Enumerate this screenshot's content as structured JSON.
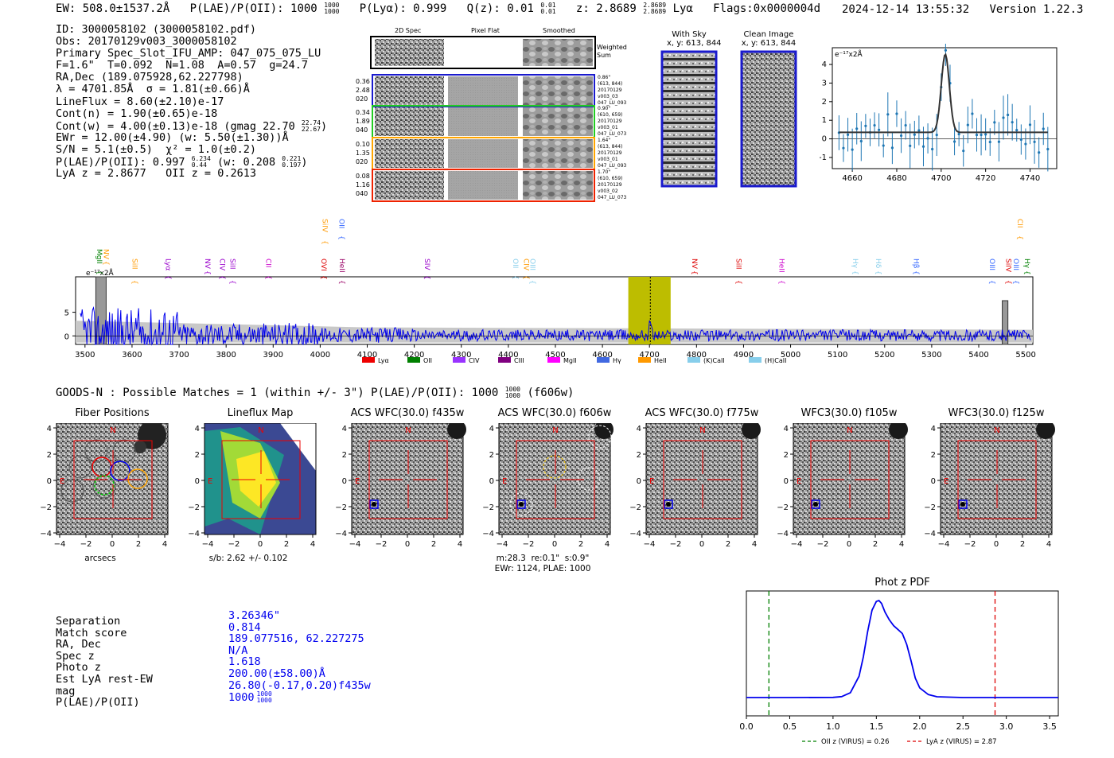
{
  "header": {
    "ew": "EW: 508.0±1537.2Å",
    "plae_label": "P(LAE)/P(OII): 1000",
    "plae_up": "1000",
    "plae_lo": "1000",
    "plya": "P(Lyα): 0.999",
    "qz_label": "Q(z): 0.01",
    "qz_up": "0.01",
    "qz_lo": "0.01",
    "z_label": "z: 2.8689",
    "z_up": "2.8689",
    "z_lo": "2.8689",
    "z_line": "Lyα",
    "flags": "Flags:0x0000004d",
    "datetime": "2024-12-14 13:55:32",
    "version": "Version 1.22.3"
  },
  "info": {
    "l1": "ID: 3000058102 (3000058102.pdf)",
    "l2": "Obs: 20170129v003_3000058102",
    "l3": "Primary Spec_Slot_IFU_AMP: 047_075_075_LU",
    "l4": "F=1.6\"  T=0.092  N=1.08  A=0.57  g=24.7",
    "l5": "RA,Dec (189.075928,62.227798)",
    "l6": "λ = 4701.85Å  σ = 1.81(±0.66)Å",
    "l7": "LineFlux = 8.60(±2.10)e-17",
    "l8": "Cont(n) = 1.90(±0.65)e-18",
    "l9": "Cont(w) = 4.00(±0.13)e-18 (gmag 22.70",
    "l9_up": "22.74",
    "l9_lo": "22.67",
    "l10": "EWr = 12.00(±4.90) (w: 5.50(±1.30))Å",
    "l11": "S/N = 5.1(±0.5)  χ² = 1.0(±0.2)",
    "l12": "P(LAE)/P(OII): 0.997",
    "l12_up": "6.234",
    "l12_lo": "0.44",
    "l12b": "(w: 0.208",
    "l12b_up": "0.221",
    "l12b_lo": "0.197",
    "l13": "LyA z = 2.8677   OII z = 0.2613"
  },
  "cutouts": {
    "col_2d": "2D Spec",
    "col_flat": "Pixel Flat",
    "col_smooth": "Smoothed",
    "weighted": "Weighted",
    "sum": "Sum",
    "rows": [
      {
        "left": [
          "0.36",
          "2.48",
          "020"
        ],
        "right": [
          "0.86\"",
          "(613, 844)",
          "20170129",
          "v003_03",
          "047_LU_093"
        ]
      },
      {
        "left": [
          "0.34",
          "1.89",
          "040"
        ],
        "right": [
          "0.90\"",
          "(610, 659)",
          "20170129",
          "v003_01",
          "047_LU_073"
        ]
      },
      {
        "left": [
          "0.10",
          "1.35",
          "020"
        ],
        "right": [
          "1.64\"",
          "(613, 844)",
          "20170129",
          "v003_01",
          "047_LU_093"
        ]
      },
      {
        "left": [
          "0.08",
          "1.16",
          "040"
        ],
        "right": [
          "1.70\"",
          "(610, 659)",
          "20170129",
          "v003_02",
          "047_LU_073"
        ]
      }
    ],
    "with_sky": "With Sky",
    "with_sky_xy": "x, y: 613, 844",
    "clean": "Clean Image",
    "clean_xy": "x, y: 613, 844"
  },
  "line_fit": {
    "ylabel": "e⁻¹⁷x2Å",
    "x_ticks": [
      "4660",
      "4680",
      "4700",
      "4720",
      "4740"
    ],
    "y_ticks": [
      "4",
      "3",
      "2",
      "1",
      "0",
      "-1"
    ],
    "xlim": [
      4651,
      4752
    ],
    "ylim": [
      -1.6,
      4.9
    ],
    "center": 4701.85,
    "sigma": 1.81,
    "amp": 4.2,
    "base": 0.35
  },
  "spectrum": {
    "ylabel": "e⁻¹⁷x2Å",
    "x_ticks": [
      "3500",
      "3600",
      "3700",
      "3800",
      "3900",
      "4000",
      "4100",
      "4200",
      "4300",
      "4400",
      "4500",
      "4600",
      "4700",
      "4800",
      "4900",
      "5000",
      "5100",
      "5200",
      "5300",
      "5400",
      "5500"
    ],
    "y_ticks": [
      "5",
      "0"
    ],
    "xlim": [
      3480,
      5515
    ],
    "ylim": [
      -1.8,
      12.5
    ],
    "highlight": [
      4655,
      4745
    ],
    "line_center": 4701.85,
    "lines": [
      {
        "name": "MgII",
        "w": 3526,
        "color": "#008000",
        "row": 1
      },
      {
        "name": "NV",
        "w": 3540,
        "color": "#ff9900",
        "row": 1
      },
      {
        "name": "SiII",
        "w": 3601,
        "color": "#ff9900",
        "row": 2
      },
      {
        "name": "Lyα",
        "w": 3672,
        "color": "#9900cc",
        "row": 2
      },
      {
        "name": "NV",
        "w": 3756,
        "color": "#9900cc",
        "row": 2
      },
      {
        "name": "CIV",
        "w": 3787,
        "color": "#9900cc",
        "row": 2
      },
      {
        "name": "SiII",
        "w": 3809,
        "color": "#9900cc",
        "row": 2
      },
      {
        "name": "CII",
        "w": 3885,
        "color": "#cc00cc",
        "row": 2
      },
      {
        "name": "SiIV",
        "w": 4005,
        "color": "#ff9900",
        "row": 0
      },
      {
        "name": "OVI",
        "w": 4003,
        "color": "#dd0000",
        "row": 2
      },
      {
        "name": "OII",
        "w": 4041,
        "color": "#3366ff",
        "row": 0
      },
      {
        "name": "HeII",
        "w": 4042,
        "color": "#990066",
        "row": 2
      },
      {
        "name": "SIV",
        "w": 4223,
        "color": "#9900cc",
        "row": 2
      },
      {
        "name": "OII",
        "w": 4410,
        "color": "#87ceeb",
        "row": 2
      },
      {
        "name": "CIV",
        "w": 4433,
        "color": "#ff9900",
        "row": 2
      },
      {
        "name": "OIII",
        "w": 4447,
        "color": "#87ceeb",
        "row": 2
      },
      {
        "name": "NV",
        "w": 4791,
        "color": "#dd0000",
        "row": 2
      },
      {
        "name": "SiII",
        "w": 4885,
        "color": "#dd0000",
        "row": 2
      },
      {
        "name": "HeII",
        "w": 4976,
        "color": "#cc00cc",
        "row": 2
      },
      {
        "name": "Hγ",
        "w": 5133,
        "color": "#87ceeb",
        "row": 2
      },
      {
        "name": "Hδ",
        "w": 5182,
        "color": "#87ceeb",
        "row": 2
      },
      {
        "name": "Hβ",
        "w": 5262,
        "color": "#3366ff",
        "row": 2
      },
      {
        "name": "OIII",
        "w": 5424,
        "color": "#3366ff",
        "row": 2
      },
      {
        "name": "SiIV",
        "w": 5458,
        "color": "#dd0000",
        "row": 2
      },
      {
        "name": "OIII",
        "w": 5474,
        "color": "#3366ff",
        "row": 2
      },
      {
        "name": "CII",
        "w": 5483,
        "color": "#ff9900",
        "row": 0
      },
      {
        "name": "Hγ",
        "w": 5498,
        "color": "#008000",
        "row": 2
      }
    ],
    "legend": [
      {
        "label": "Lyα",
        "color": "#ee0000"
      },
      {
        "label": "OII",
        "color": "#008000"
      },
      {
        "label": "CIV",
        "color": "#9933ff"
      },
      {
        "label": "CIII",
        "color": "#800080"
      },
      {
        "label": "MgII",
        "color": "#ff00ff"
      },
      {
        "label": "Hγ",
        "color": "#4169e1"
      },
      {
        "label": "HeII",
        "color": "#ff9900"
      },
      {
        "label": "(K)CaII",
        "color": "#87ceeb"
      },
      {
        "label": "(H)CaII",
        "color": "#87ceeb"
      }
    ]
  },
  "match": {
    "text": "GOODS-N : Possible Matches = 1 (within +/- 3\")  P(LAE)/P(OII): 1000",
    "up": "1000",
    "lo": "1000",
    "filter": "(f606w)"
  },
  "panels": [
    {
      "title": "Fiber Positions",
      "xlabel": "arcsecs",
      "kind": "fiber"
    },
    {
      "title": "Lineflux Map",
      "xlabel": "s/b: 2.62 +/- 0.102",
      "kind": "flux"
    },
    {
      "title": "ACS WFC(30.0) f435w",
      "xlabel": "",
      "kind": "img"
    },
    {
      "title": "ACS WFC(30.0) f606w",
      "xlabel": "m:28.3  re:0.1\"  s:0.9\"",
      "xlabel2": "EWr: 1124, PLAE: 1000",
      "kind": "img606"
    },
    {
      "title": "ACS WFC(30.0) f775w",
      "xlabel": "",
      "kind": "img"
    },
    {
      "title": "WFC3(30.0) f105w",
      "xlabel": "",
      "kind": "img"
    },
    {
      "title": "WFC3(30.0) f125w",
      "xlabel": "",
      "kind": "img"
    }
  ],
  "panel_ticks": [
    "−4",
    "−2",
    "0",
    "2",
    "4"
  ],
  "panel_yticks": [
    "4",
    "2",
    "0",
    "−2",
    "−4"
  ],
  "compass": {
    "n": "N",
    "e": "E"
  },
  "bottom": {
    "labels": [
      "Separation",
      "Match score",
      "RA, Dec",
      "Spec z",
      "Photo z",
      "Est LyA rest-EW",
      "mag",
      "P(LAE)/P(OII)"
    ],
    "values": [
      "3.26346\"",
      "0.814",
      "189.077516, 62.227275",
      "N/A",
      "1.618",
      "200.00(±58.00)Å",
      "26.80(-0.17,0.20)f435w",
      "1000"
    ],
    "plae_up": "1000",
    "plae_lo": "1000"
  },
  "chart_data": [
    {
      "type": "line",
      "title": "Phot z PDF",
      "xlabel": "",
      "ylabel": "",
      "xlim": [
        0.0,
        3.6
      ],
      "x_ticks": [
        "0.0",
        "0.5",
        "1.0",
        "1.5",
        "2.0",
        "2.5",
        "3.0",
        "3.5"
      ],
      "x": [
        0.0,
        0.5,
        1.0,
        1.1,
        1.2,
        1.3,
        1.35,
        1.4,
        1.45,
        1.5,
        1.53,
        1.56,
        1.6,
        1.65,
        1.7,
        1.75,
        1.8,
        1.85,
        1.9,
        1.95,
        2.0,
        2.1,
        2.2,
        2.5,
        3.0,
        3.6
      ],
      "values": [
        0.0,
        0.0,
        0.002,
        0.01,
        0.05,
        0.22,
        0.42,
        0.68,
        0.9,
        0.99,
        1.0,
        0.97,
        0.88,
        0.8,
        0.74,
        0.7,
        0.66,
        0.55,
        0.38,
        0.2,
        0.1,
        0.03,
        0.008,
        0.0,
        0.0,
        0.0
      ],
      "vlines": [
        {
          "x": 0.26,
          "color": "#008000",
          "label": "OII z (VIRUS) = 0.26"
        },
        {
          "x": 2.87,
          "color": "#dd0000",
          "label": "LyA z (VIRUS) = 2.87"
        }
      ]
    }
  ]
}
